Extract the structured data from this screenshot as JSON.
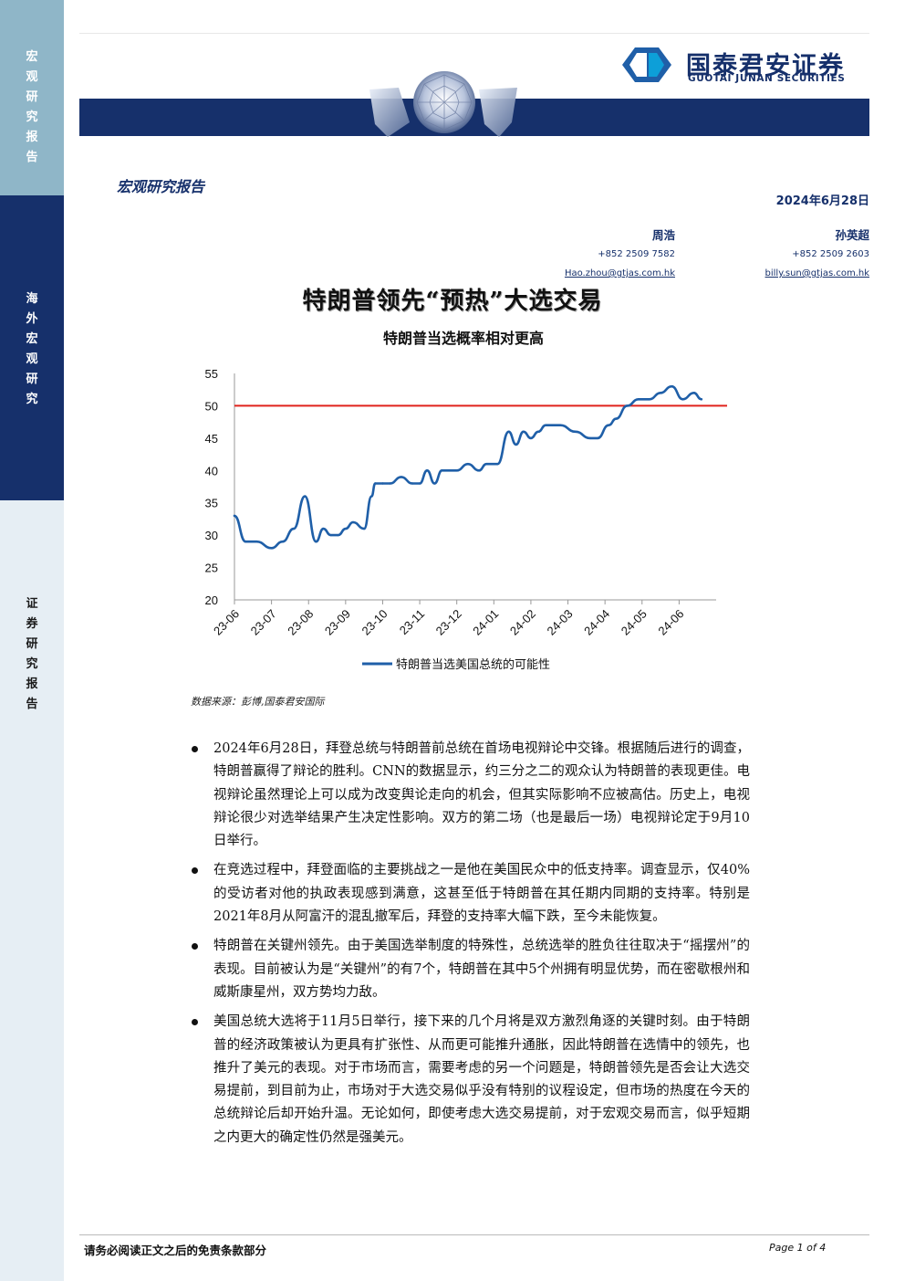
{
  "sidebar": {
    "section1": "宏观研究报告",
    "section2": "海外宏观研究",
    "section3": "证券研究报告"
  },
  "header": {
    "logo_cn": "国泰君安证券",
    "logo_en": "GUOTAI JUNAN SECURITIES",
    "report_type": "宏观研究报告",
    "date": "2024年6月28日",
    "brand_color": "#16306b"
  },
  "authors": [
    {
      "name": "周浩",
      "phone": "+852 2509 7582",
      "email": "Hao.zhou@gtjas.com.hk"
    },
    {
      "name": "孙英超",
      "phone": "+852 2509 2603",
      "email": "billy.sun@gtjas.com.hk"
    }
  ],
  "title": "特朗普领先“预热”大选交易",
  "subtitle": "特朗普当选概率相对更高",
  "chart_data": {
    "type": "line",
    "title": "",
    "ylim": [
      20,
      55
    ],
    "yticks": [
      "55",
      "50",
      "45",
      "40",
      "35",
      "30",
      "25",
      "20"
    ],
    "categories": [
      "23-06",
      "23-07",
      "23-08",
      "23-09",
      "23-10",
      "23-11",
      "23-12",
      "24-01",
      "24-02",
      "24-03",
      "24-04",
      "24-05",
      "24-06"
    ],
    "x": [
      0,
      0.3,
      0.6,
      1.0,
      1.3,
      1.6,
      1.9,
      2.2,
      2.4,
      2.6,
      2.8,
      3.0,
      3.2,
      3.5,
      3.7,
      3.8,
      4.0,
      4.2,
      4.5,
      4.8,
      5.0,
      5.2,
      5.4,
      5.6,
      5.8,
      6.0,
      6.3,
      6.6,
      6.8,
      7.1,
      7.4,
      7.6,
      7.8,
      8.0,
      8.2,
      8.4,
      8.6,
      8.8,
      9.2,
      9.6,
      9.8,
      10.1,
      10.3,
      10.6,
      10.9,
      11.2,
      11.5,
      11.8,
      12.1,
      12.4,
      12.6
    ],
    "series": [
      {
        "name": "特朗普当选美国总统的可能性",
        "color": "#1f5fa8",
        "values": [
          33,
          29,
          29,
          28,
          29,
          31,
          36,
          29,
          31,
          30,
          30,
          31,
          32,
          31,
          36,
          38,
          38,
          38,
          39,
          38,
          38,
          40,
          38,
          40,
          40,
          40,
          41,
          40,
          41,
          41,
          46,
          44,
          46,
          45,
          46,
          47,
          47,
          47,
          46,
          45,
          45,
          47,
          48,
          50,
          51,
          51,
          52,
          53,
          51,
          52,
          51
        ]
      }
    ],
    "reference_line": {
      "value": 50,
      "color": "#e0231c"
    },
    "legend": "bottom",
    "grid": false
  },
  "source": "数据来源：彭博,国泰君安国际",
  "bullets": [
    "2024年6月28日，拜登总统与特朗普前总统在首场电视辩论中交锋。根据随后进行的调查，特朗普赢得了辩论的胜利。CNN的数据显示，约三分之二的观众认为特朗普的表现更佳。电视辩论虽然理论上可以成为改变舆论走向的机会，但其实际影响不应被高估。历史上，电视辩论很少对选举结果产生决定性影响。双方的第二场（也是最后一场）电视辩论定于9月10日举行。",
    "在竞选过程中，拜登面临的主要挑战之一是他在美国民众中的低支持率。调查显示，仅40%的受访者对他的执政表现感到满意，这甚至低于特朗普在其任期内同期的支持率。特别是2021年8月从阿富汗的混乱撤军后，拜登的支持率大幅下跌，至今未能恢复。",
    "特朗普在关键州领先。由于美国选举制度的特殊性，总统选举的胜负往往取决于“摇摆州”的表现。目前被认为是“关键州”的有7个，特朗普在其中5个州拥有明显优势，而在密歇根州和威斯康星州，双方势均力敌。",
    "美国总统大选将于11月5日举行，接下来的几个月将是双方激烈角逐的关键时刻。由于特朗普的经济政策被认为更具有扩张性、从而更可能推升通胀，因此特朗普在选情中的领先，也推升了美元的表现。对于市场而言，需要考虑的另一个问题是，特朗普领先是否会让大选交易提前，到目前为止，市场对于大选交易似乎没有特别的议程设定，但市场的热度在今天的总统辩论后却开始升温。无论如何，即使考虑大选交易提前，对于宏观交易而言，似乎短期之内更大的确定性仍然是强美元。"
  ],
  "footer": {
    "disclaimer": "请务必阅读正文之后的免责条款部分",
    "page": "Page 1 of 4"
  }
}
